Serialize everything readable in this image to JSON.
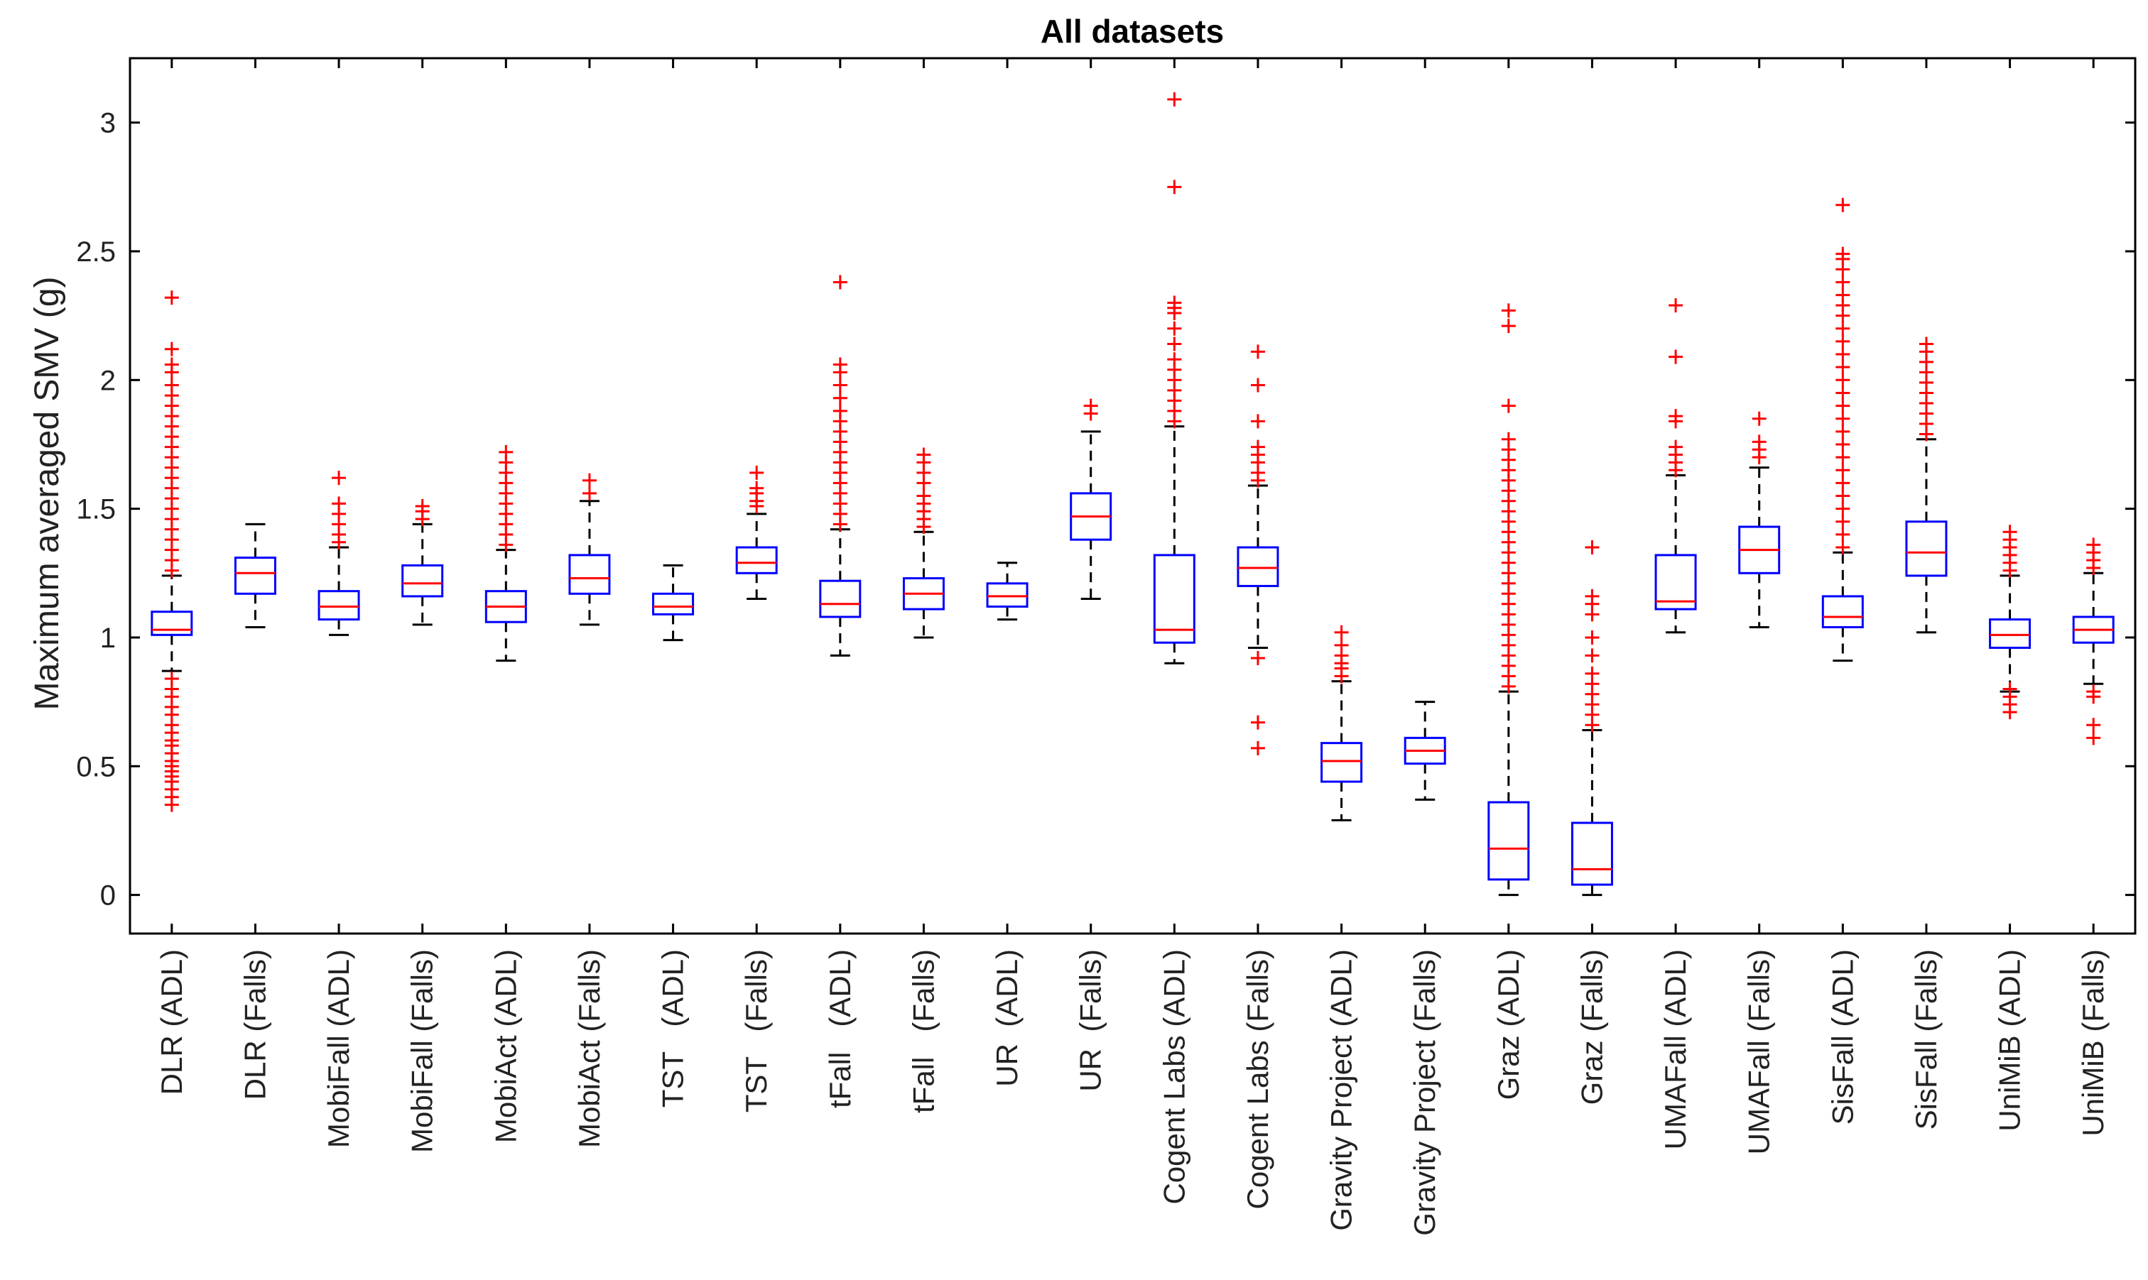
{
  "chart_data": {
    "type": "box",
    "title": "All datasets",
    "xlabel": "",
    "ylabel": "Maximum averaged SMV (g)",
    "ylim": [
      -0.15,
      3.25
    ],
    "yticks": [
      0,
      0.5,
      1,
      1.5,
      2,
      2.5,
      3
    ],
    "ytick_labels": [
      "0",
      "0.5",
      "1",
      "1.5",
      "2",
      "2.5",
      "3"
    ],
    "grid": false,
    "colors": {
      "box": "#0000ff",
      "median": "#ff0000",
      "whisker": "#000000",
      "outlier": "#ff0000",
      "axes": "#000000"
    },
    "categories": [
      "DLR (ADL)",
      "DLR (Falls)",
      "MobiFall (ADL)",
      "MobiFall (Falls)",
      "MobiAct (ADL)",
      "MobiAct (Falls)",
      "TST   (ADL)",
      "TST   (Falls)",
      "tFall   (ADL)",
      "tFall   (Falls)",
      "UR  (ADL)",
      "UR  (Falls)",
      "Cogent Labs (ADL)",
      "Cogent Labs (Falls)",
      "Gravity Project (ADL)",
      "Gravity Project (Falls)",
      "Graz (ADL)",
      "Graz (Falls)",
      "UMAFall (ADL)",
      "UMAFall (Falls)",
      "SisFall (ADL)",
      "SisFall (Falls)",
      "UniMiB (ADL)",
      "UniMiB (Falls)"
    ],
    "boxes": [
      {
        "wl": 0.87,
        "q1": 1.01,
        "med": 1.03,
        "q3": 1.1,
        "wh": 1.24,
        "outliers": [
          0.35,
          0.38,
          0.41,
          0.44,
          0.46,
          0.48,
          0.5,
          0.52,
          0.55,
          0.58,
          0.6,
          0.63,
          0.66,
          0.7,
          0.73,
          0.77,
          0.8,
          0.84,
          1.26,
          1.3,
          1.34,
          1.38,
          1.42,
          1.46,
          1.5,
          1.54,
          1.58,
          1.62,
          1.66,
          1.7,
          1.74,
          1.78,
          1.82,
          1.86,
          1.9,
          1.94,
          1.98,
          2.03,
          2.06,
          2.12,
          2.32
        ]
      },
      {
        "wl": 1.04,
        "q1": 1.17,
        "med": 1.25,
        "q3": 1.31,
        "wh": 1.44,
        "outliers": []
      },
      {
        "wl": 1.01,
        "q1": 1.07,
        "med": 1.12,
        "q3": 1.18,
        "wh": 1.35,
        "outliers": [
          1.37,
          1.4,
          1.44,
          1.48,
          1.52,
          1.62
        ]
      },
      {
        "wl": 1.05,
        "q1": 1.16,
        "med": 1.21,
        "q3": 1.28,
        "wh": 1.44,
        "outliers": [
          1.46,
          1.49,
          1.51
        ]
      },
      {
        "wl": 0.91,
        "q1": 1.06,
        "med": 1.12,
        "q3": 1.18,
        "wh": 1.34,
        "outliers": [
          1.36,
          1.4,
          1.44,
          1.48,
          1.52,
          1.56,
          1.6,
          1.64,
          1.68,
          1.72
        ]
      },
      {
        "wl": 1.05,
        "q1": 1.17,
        "med": 1.23,
        "q3": 1.32,
        "wh": 1.53,
        "outliers": [
          1.56,
          1.61
        ]
      },
      {
        "wl": 0.99,
        "q1": 1.09,
        "med": 1.12,
        "q3": 1.17,
        "wh": 1.28,
        "outliers": []
      },
      {
        "wl": 1.15,
        "q1": 1.25,
        "med": 1.29,
        "q3": 1.35,
        "wh": 1.48,
        "outliers": [
          1.51,
          1.53,
          1.56,
          1.58,
          1.64
        ]
      },
      {
        "wl": 0.93,
        "q1": 1.08,
        "med": 1.13,
        "q3": 1.22,
        "wh": 1.42,
        "outliers": [
          1.44,
          1.48,
          1.52,
          1.56,
          1.6,
          1.64,
          1.68,
          1.72,
          1.76,
          1.8,
          1.84,
          1.88,
          1.93,
          1.98,
          2.03,
          2.06,
          2.38
        ]
      },
      {
        "wl": 1.0,
        "q1": 1.11,
        "med": 1.17,
        "q3": 1.23,
        "wh": 1.41,
        "outliers": [
          1.43,
          1.46,
          1.49,
          1.52,
          1.55,
          1.6,
          1.64,
          1.68,
          1.71
        ]
      },
      {
        "wl": 1.07,
        "q1": 1.12,
        "med": 1.16,
        "q3": 1.21,
        "wh": 1.29,
        "outliers": []
      },
      {
        "wl": 1.15,
        "q1": 1.38,
        "med": 1.47,
        "q3": 1.56,
        "wh": 1.8,
        "outliers": [
          1.87,
          1.9
        ]
      },
      {
        "wl": 0.9,
        "q1": 0.98,
        "med": 1.03,
        "q3": 1.32,
        "wh": 1.82,
        "outliers": [
          1.84,
          1.88,
          1.92,
          1.96,
          2.0,
          2.04,
          2.08,
          2.14,
          2.2,
          2.26,
          2.28,
          2.3,
          2.75,
          3.09
        ]
      },
      {
        "wl": 0.96,
        "q1": 1.2,
        "med": 1.27,
        "q3": 1.35,
        "wh": 1.59,
        "outliers": [
          0.57,
          0.67,
          0.92,
          1.61,
          1.64,
          1.68,
          1.71,
          1.74,
          1.84,
          1.98,
          2.11
        ]
      },
      {
        "wl": 0.29,
        "q1": 0.44,
        "med": 0.52,
        "q3": 0.59,
        "wh": 0.83,
        "outliers": [
          0.85,
          0.88,
          0.9,
          0.93,
          0.97,
          1.02
        ]
      },
      {
        "wl": 0.37,
        "q1": 0.51,
        "med": 0.56,
        "q3": 0.61,
        "wh": 0.75,
        "outliers": []
      },
      {
        "wl": 0.0,
        "q1": 0.06,
        "med": 0.18,
        "q3": 0.36,
        "wh": 0.79,
        "outliers": [
          0.81,
          0.85,
          0.89,
          0.93,
          0.97,
          1.01,
          1.05,
          1.09,
          1.13,
          1.17,
          1.21,
          1.25,
          1.29,
          1.33,
          1.37,
          1.41,
          1.45,
          1.49,
          1.53,
          1.57,
          1.61,
          1.65,
          1.69,
          1.73,
          1.77,
          1.9,
          2.21,
          2.27
        ]
      },
      {
        "wl": 0.0,
        "q1": 0.04,
        "med": 0.1,
        "q3": 0.28,
        "wh": 0.64,
        "outliers": [
          0.66,
          0.7,
          0.74,
          0.78,
          0.82,
          0.86,
          0.93,
          1.0,
          1.09,
          1.13,
          1.16,
          1.35
        ]
      },
      {
        "wl": 1.02,
        "q1": 1.11,
        "med": 1.14,
        "q3": 1.32,
        "wh": 1.63,
        "outliers": [
          1.65,
          1.68,
          1.71,
          1.74,
          1.84,
          1.86,
          2.09,
          2.29
        ]
      },
      {
        "wl": 1.04,
        "q1": 1.25,
        "med": 1.34,
        "q3": 1.43,
        "wh": 1.66,
        "outliers": [
          1.7,
          1.73,
          1.76,
          1.85
        ]
      },
      {
        "wl": 0.91,
        "q1": 1.04,
        "med": 1.08,
        "q3": 1.16,
        "wh": 1.33,
        "outliers": [
          1.35,
          1.4,
          1.45,
          1.5,
          1.55,
          1.6,
          1.65,
          1.7,
          1.75,
          1.8,
          1.85,
          1.9,
          1.95,
          2.0,
          2.05,
          2.1,
          2.15,
          2.2,
          2.25,
          2.29,
          2.33,
          2.38,
          2.43,
          2.47,
          2.49,
          2.68
        ]
      },
      {
        "wl": 1.02,
        "q1": 1.24,
        "med": 1.33,
        "q3": 1.45,
        "wh": 1.77,
        "outliers": [
          1.79,
          1.83,
          1.87,
          1.91,
          1.95,
          1.99,
          2.03,
          2.07,
          2.11,
          2.14
        ]
      },
      {
        "wl": 0.79,
        "q1": 0.96,
        "med": 1.01,
        "q3": 1.07,
        "wh": 1.24,
        "outliers": [
          0.71,
          0.74,
          0.77,
          0.8,
          1.26,
          1.29,
          1.32,
          1.35,
          1.38,
          1.41
        ]
      },
      {
        "wl": 0.82,
        "q1": 0.98,
        "med": 1.03,
        "q3": 1.08,
        "wh": 1.25,
        "outliers": [
          0.61,
          0.66,
          0.77,
          0.79,
          1.27,
          1.3,
          1.33,
          1.36
        ]
      }
    ]
  }
}
